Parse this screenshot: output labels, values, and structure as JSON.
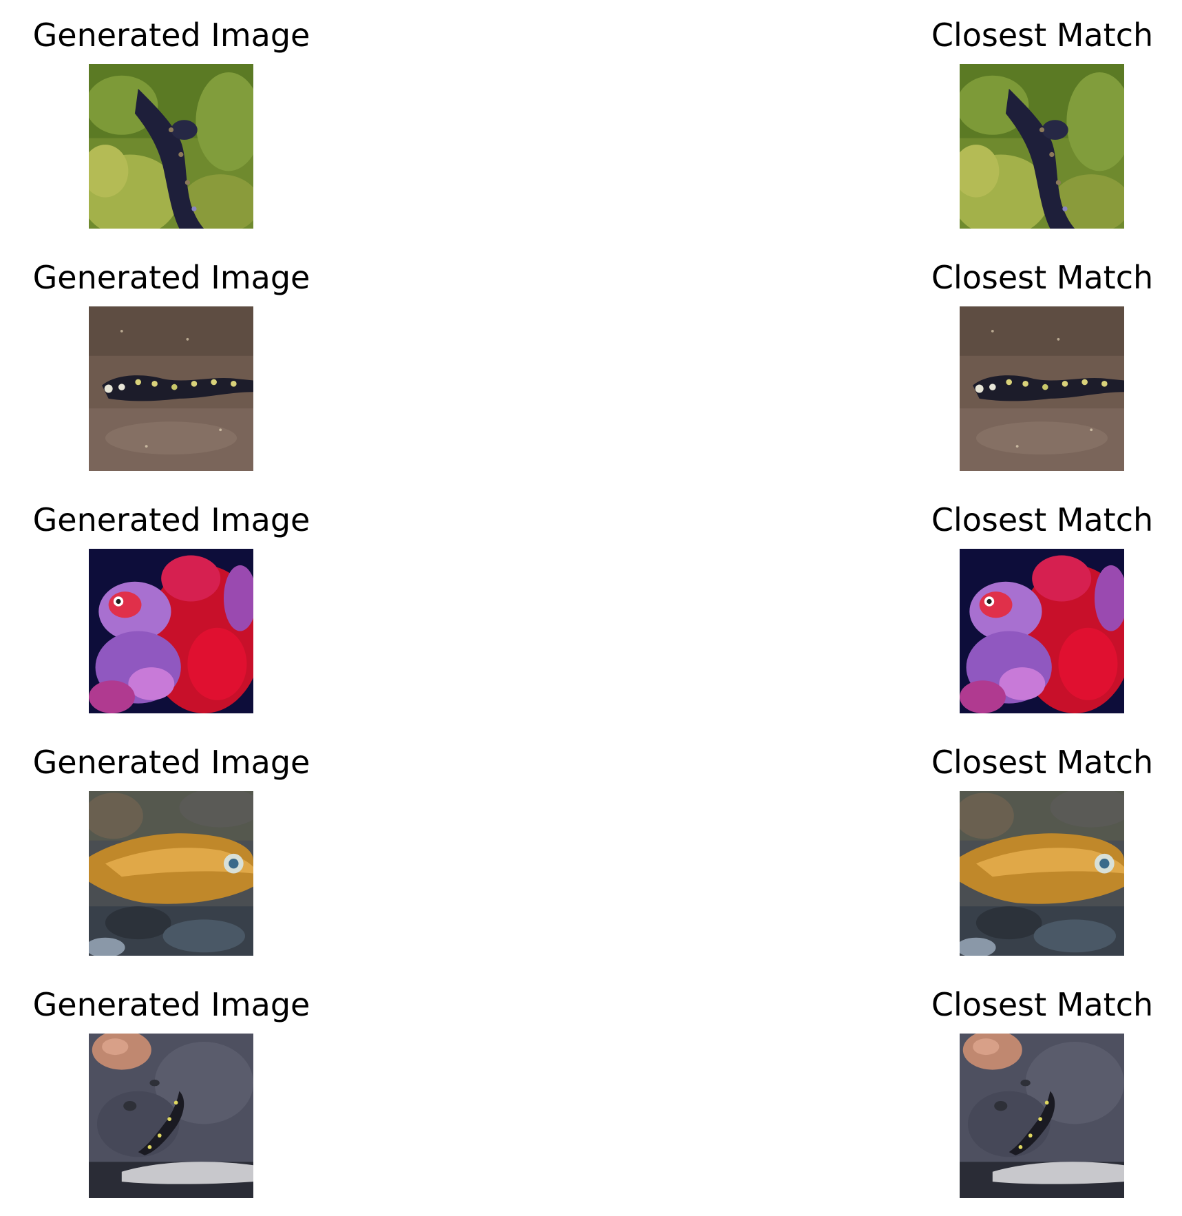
{
  "pairs": [
    {
      "generated_title": "Generated Image",
      "match_title": "Closest Match",
      "subject": "dark salamander on green grass"
    },
    {
      "generated_title": "Generated Image",
      "match_title": "Closest Match",
      "subject": "spotted salamander on brown gravel"
    },
    {
      "generated_title": "Generated Image",
      "match_title": "Closest Match",
      "subject": "red and purple fish on dark blue background"
    },
    {
      "generated_title": "Generated Image",
      "match_title": "Closest Match",
      "subject": "golden fish over rocks"
    },
    {
      "generated_title": "Generated Image",
      "match_title": "Closest Match",
      "subject": "small salamander on grey rock"
    }
  ]
}
